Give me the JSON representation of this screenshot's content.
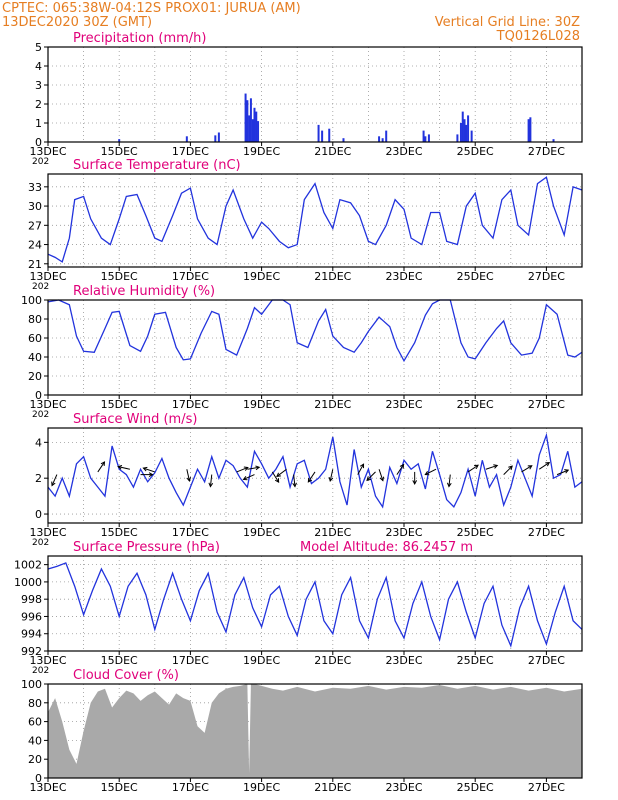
{
  "header": {
    "line1_left": "CPTEC:   065:38W-04:12S   PROX01: JURUA (AM)",
    "line2_left": "13DEC2020 30Z (GMT)",
    "line2_right": "Vertical Grid Line: 30Z",
    "line3_right": "TQ0126L028"
  },
  "colors": {
    "header": "#e67e22",
    "panel_title": "#e0007a",
    "series": "#2233dd",
    "cloud": "#a9a9a9",
    "wind_arrow": "#000000",
    "grid": "#999999"
  },
  "x_axis": {
    "tick_labels": [
      "13DEC",
      "15DEC",
      "17DEC",
      "19DEC",
      "21DEC",
      "23DEC",
      "25DEC",
      "27DEC"
    ],
    "year_fragment": "202"
  },
  "chart_data": [
    {
      "type": "bar",
      "title": "Precipitation  (mm/h)",
      "ylim": [
        0,
        5
      ],
      "yticks": [
        "0",
        "1",
        "2",
        "3",
        "4",
        "5"
      ],
      "x_range_days": [
        13.0,
        28.0
      ],
      "x": [
        15.0,
        16.9,
        17.7,
        17.8,
        18.55,
        18.6,
        18.65,
        18.7,
        18.75,
        18.8,
        18.85,
        18.9,
        20.6,
        20.7,
        20.9,
        21.3,
        22.3,
        22.4,
        22.5,
        23.55,
        23.6,
        23.7,
        24.5,
        24.6,
        24.65,
        24.7,
        24.75,
        24.8,
        24.9,
        26.5,
        26.55,
        27.2
      ],
      "values": [
        0.15,
        0.3,
        0.35,
        0.5,
        2.55,
        2.2,
        1.4,
        2.3,
        1.2,
        1.8,
        1.6,
        1.1,
        0.9,
        0.6,
        0.7,
        0.2,
        0.3,
        0.2,
        0.6,
        0.6,
        0.3,
        0.4,
        0.4,
        1.0,
        1.6,
        1.2,
        0.9,
        1.4,
        0.6,
        1.2,
        1.3,
        0.15
      ]
    },
    {
      "type": "line",
      "title": "Surface Temperature (nC)",
      "ylim": [
        20.5,
        35
      ],
      "yticks": [
        "21",
        "24",
        "27",
        "30",
        "33"
      ],
      "x": [
        13.0,
        13.2,
        13.4,
        13.6,
        13.75,
        14.0,
        14.2,
        14.5,
        14.75,
        15.0,
        15.2,
        15.5,
        15.75,
        16.0,
        16.2,
        16.5,
        16.75,
        17.0,
        17.2,
        17.5,
        17.75,
        18.0,
        18.2,
        18.5,
        18.75,
        19.0,
        19.2,
        19.5,
        19.75,
        20.0,
        20.2,
        20.5,
        20.75,
        21.0,
        21.2,
        21.5,
        21.75,
        22.0,
        22.2,
        22.5,
        22.75,
        23.0,
        23.2,
        23.5,
        23.75,
        24.0,
        24.2,
        24.5,
        24.75,
        25.0,
        25.2,
        25.5,
        25.75,
        26.0,
        26.2,
        26.5,
        26.75,
        27.0,
        27.2,
        27.5,
        27.75,
        28.0
      ],
      "values": [
        22.5,
        22.0,
        21.3,
        25.0,
        31.0,
        31.5,
        28.0,
        25.0,
        24.0,
        28.0,
        31.5,
        31.8,
        28.5,
        25.0,
        24.5,
        28.5,
        32.0,
        32.8,
        28.0,
        25.0,
        24.0,
        30.0,
        32.5,
        28.0,
        25.0,
        27.5,
        26.5,
        24.5,
        23.5,
        24.0,
        31.0,
        33.5,
        29.0,
        26.5,
        31.0,
        30.5,
        28.5,
        24.5,
        24.0,
        27.0,
        31.0,
        29.5,
        25.0,
        24.0,
        29.0,
        29.0,
        24.5,
        24.0,
        30.0,
        32.0,
        27.0,
        25.0,
        31.0,
        32.5,
        27.0,
        25.5,
        33.5,
        34.5,
        30.0,
        25.5,
        33.0,
        32.5
      ]
    },
    {
      "type": "line",
      "title": "Relative Humidity  (%)",
      "ylim": [
        0,
        100
      ],
      "yticks": [
        "0",
        "20",
        "40",
        "60",
        "80",
        "100"
      ],
      "x": [
        13.0,
        13.3,
        13.6,
        13.8,
        14.0,
        14.3,
        14.6,
        14.8,
        15.0,
        15.3,
        15.6,
        15.8,
        16.0,
        16.3,
        16.6,
        16.8,
        17.0,
        17.3,
        17.6,
        17.8,
        18.0,
        18.3,
        18.6,
        18.8,
        19.0,
        19.3,
        19.6,
        19.8,
        20.0,
        20.3,
        20.6,
        20.8,
        21.0,
        21.3,
        21.6,
        21.8,
        22.0,
        22.3,
        22.6,
        22.8,
        23.0,
        23.3,
        23.6,
        23.8,
        24.0,
        24.3,
        24.6,
        24.8,
        25.0,
        25.3,
        25.6,
        25.8,
        26.0,
        26.3,
        26.6,
        26.8,
        27.0,
        27.3,
        27.6,
        27.8,
        28.0
      ],
      "values": [
        98,
        100,
        95,
        62,
        46,
        45,
        70,
        87,
        88,
        52,
        46,
        62,
        85,
        87,
        50,
        37,
        38,
        65,
        88,
        85,
        48,
        42,
        70,
        92,
        85,
        100,
        100,
        95,
        55,
        50,
        78,
        90,
        62,
        50,
        45,
        55,
        67,
        82,
        72,
        50,
        36,
        55,
        84,
        96,
        100,
        100,
        55,
        40,
        38,
        55,
        70,
        78,
        55,
        42,
        44,
        60,
        95,
        85,
        42,
        40,
        45
      ]
    },
    {
      "type": "line",
      "title": "Surface Wind  (m/s)",
      "ylim": [
        -0.5,
        4.8
      ],
      "yticks": [
        "0",
        "2",
        "4"
      ],
      "x": [
        13.0,
        13.2,
        13.4,
        13.6,
        13.8,
        14.0,
        14.2,
        14.4,
        14.6,
        14.8,
        15.0,
        15.2,
        15.4,
        15.6,
        15.8,
        16.0,
        16.2,
        16.4,
        16.6,
        16.8,
        17.0,
        17.2,
        17.4,
        17.6,
        17.8,
        18.0,
        18.2,
        18.4,
        18.6,
        18.8,
        19.0,
        19.2,
        19.4,
        19.6,
        19.8,
        20.0,
        20.2,
        20.4,
        20.6,
        20.8,
        21.0,
        21.2,
        21.4,
        21.6,
        21.8,
        22.0,
        22.2,
        22.4,
        22.6,
        22.8,
        23.0,
        23.2,
        23.4,
        23.6,
        23.8,
        24.0,
        24.2,
        24.4,
        24.6,
        24.8,
        25.0,
        25.2,
        25.4,
        25.6,
        25.8,
        26.0,
        26.2,
        26.4,
        26.6,
        26.8,
        27.0,
        27.2,
        27.4,
        27.6,
        27.8,
        28.0
      ],
      "values": [
        1.5,
        1.0,
        2.0,
        1.0,
        2.8,
        3.2,
        2.0,
        1.5,
        1.0,
        3.8,
        2.5,
        2.2,
        1.5,
        2.5,
        1.8,
        2.3,
        3.1,
        2.0,
        1.2,
        0.5,
        1.5,
        2.5,
        1.8,
        3.2,
        2.0,
        3.0,
        2.7,
        2.0,
        1.5,
        3.5,
        2.8,
        2.0,
        2.5,
        3.2,
        1.5,
        2.8,
        3.0,
        1.7,
        2.0,
        2.5,
        4.3,
        1.8,
        0.5,
        3.6,
        1.5,
        2.5,
        1.0,
        0.4,
        2.6,
        1.7,
        3.0,
        2.5,
        2.8,
        1.4,
        3.5,
        2.2,
        0.8,
        0.4,
        1.2,
        2.5,
        1.0,
        3.0,
        1.5,
        2.2,
        0.5,
        1.5,
        3.0,
        2.0,
        1.0,
        3.3,
        4.4,
        2.0,
        2.2,
        3.5,
        1.5,
        1.8
      ],
      "arrows": {
        "x": [
          13.25,
          14.4,
          15.3,
          15.6,
          16.0,
          16.9,
          17.6,
          18.3,
          18.6,
          18.8,
          19.3,
          19.7,
          19.9,
          20.5,
          21.0,
          21.7,
          22.2,
          22.3,
          22.8,
          23.3,
          23.9,
          24.3,
          24.8,
          25.3,
          25.8,
          26.3,
          26.8,
          27.3
        ],
        "u": [
          -0.4,
          0.6,
          -0.9,
          0.8,
          -0.6,
          0.2,
          -0.1,
          1.0,
          1.2,
          -0.9,
          0.5,
          -0.8,
          0.1,
          -0.4,
          -0.2,
          0.5,
          -0.4,
          0.3,
          0.6,
          0.0,
          -0.6,
          -0.1,
          0.6,
          0.9,
          0.5,
          1.0,
          0.6,
          1.0
        ],
        "v": [
          -0.9,
          0.9,
          0.2,
          0.0,
          0.2,
          -0.9,
          -0.9,
          0.4,
          0.2,
          -0.4,
          -0.8,
          -0.6,
          -0.9,
          -0.6,
          -0.9,
          0.9,
          -0.4,
          -0.9,
          0.9,
          -0.9,
          -0.3,
          -0.9,
          0.4,
          0.3,
          0.5,
          0.6,
          0.4,
          0.4
        ]
      }
    },
    {
      "type": "line",
      "title": "Surface Pressure (hPa)",
      "annotation": "Model Altitude: 86.2457  m",
      "ylim": [
        992,
        1003
      ],
      "yticks": [
        "992",
        "994",
        "996",
        "998",
        "1000",
        "1002"
      ],
      "x": [
        13.0,
        13.25,
        13.5,
        13.75,
        14.0,
        14.25,
        14.5,
        14.75,
        15.0,
        15.25,
        15.5,
        15.75,
        16.0,
        16.25,
        16.5,
        16.75,
        17.0,
        17.25,
        17.5,
        17.75,
        18.0,
        18.25,
        18.5,
        18.75,
        19.0,
        19.25,
        19.5,
        19.75,
        20.0,
        20.25,
        20.5,
        20.75,
        21.0,
        21.25,
        21.5,
        21.75,
        22.0,
        22.25,
        22.5,
        22.75,
        23.0,
        23.25,
        23.5,
        23.75,
        24.0,
        24.25,
        24.5,
        24.75,
        25.0,
        25.25,
        25.5,
        25.75,
        26.0,
        26.25,
        26.5,
        26.75,
        27.0,
        27.25,
        27.5,
        27.75,
        28.0
      ],
      "values": [
        1001.5,
        1001.8,
        1002.2,
        999.5,
        996.2,
        999.0,
        1001.5,
        999.5,
        996.0,
        999.5,
        1001.0,
        998.5,
        994.5,
        998.0,
        1001.0,
        998.0,
        995.5,
        999.0,
        1001.0,
        996.5,
        994.2,
        998.5,
        1000.5,
        997.0,
        994.8,
        998.5,
        999.5,
        996.0,
        993.8,
        998.0,
        1000.0,
        995.5,
        994.0,
        998.5,
        1000.5,
        995.5,
        993.5,
        998.0,
        1000.5,
        995.5,
        993.5,
        997.5,
        1000.0,
        996.0,
        993.3,
        998.0,
        1000.0,
        996.5,
        993.5,
        997.5,
        999.5,
        995.0,
        992.6,
        997.0,
        999.5,
        995.5,
        992.8,
        996.5,
        999.5,
        995.5,
        994.5
      ]
    },
    {
      "type": "area",
      "title": "Cloud Cover  (%)",
      "ylim": [
        0,
        100
      ],
      "yticks": [
        "0",
        "20",
        "40",
        "60",
        "80",
        "100"
      ],
      "x": [
        13.0,
        13.2,
        13.4,
        13.6,
        13.8,
        14.0,
        14.2,
        14.4,
        14.6,
        14.8,
        15.0,
        15.2,
        15.4,
        15.6,
        15.8,
        16.0,
        16.2,
        16.4,
        16.6,
        16.8,
        17.0,
        17.2,
        17.4,
        17.6,
        17.8,
        18.0,
        18.2,
        18.4,
        18.6,
        18.65,
        18.7,
        18.8,
        19.0,
        19.3,
        19.6,
        20.0,
        20.5,
        21.0,
        21.5,
        22.0,
        22.5,
        23.0,
        23.5,
        24.0,
        24.5,
        25.0,
        25.5,
        26.0,
        26.5,
        27.0,
        27.5,
        28.0
      ],
      "values": [
        70,
        85,
        60,
        30,
        15,
        50,
        80,
        92,
        95,
        75,
        85,
        93,
        90,
        82,
        88,
        92,
        85,
        78,
        90,
        85,
        82,
        55,
        48,
        80,
        90,
        95,
        97,
        98,
        100,
        5,
        100,
        100,
        98,
        95,
        93,
        97,
        92,
        96,
        95,
        98,
        94,
        97,
        96,
        99,
        95,
        98,
        94,
        97,
        93,
        96,
        92,
        95
      ]
    }
  ]
}
